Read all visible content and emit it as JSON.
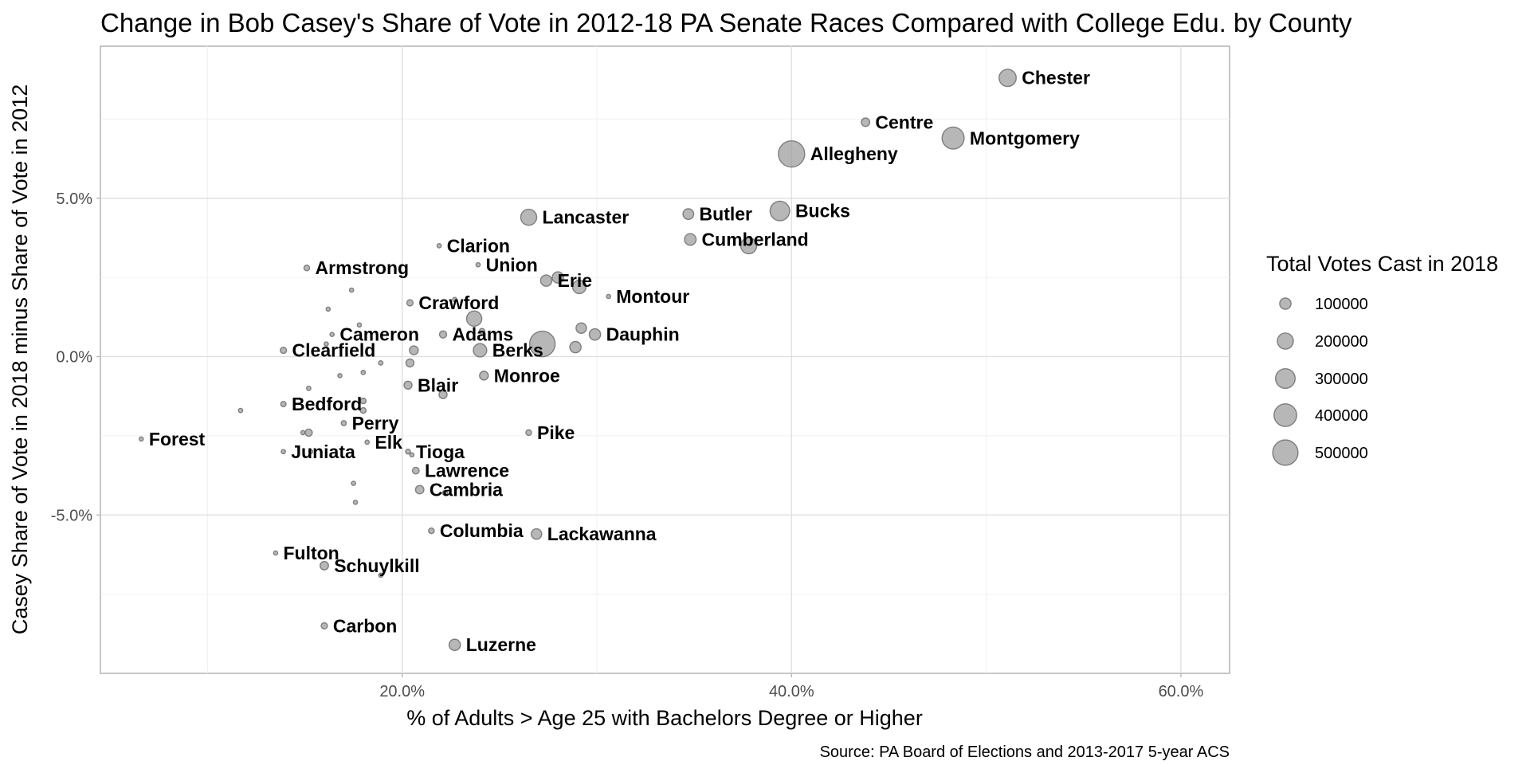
{
  "chart_data": {
    "type": "scatter",
    "title": "Change in Bob Casey's Share of Vote in 2012-18 PA Senate Races Compared with College Edu. by County",
    "xlabel": "% of Adults > Age 25 with Bachelors Degree or Higher",
    "ylabel": "Casey Share of Vote in 2018 minus Share of Vote in 2012",
    "caption": "Source: PA Board of Elections and 2013-2017 5-year ACS",
    "xlim": [
      4.5,
      62.5
    ],
    "ylim": [
      -10,
      9.8
    ],
    "x_ticks": [
      20,
      40,
      60
    ],
    "x_tick_labels": [
      "20.0%",
      "40.0%",
      "60.0%"
    ],
    "y_ticks": [
      -5,
      0,
      5
    ],
    "y_tick_labels": [
      "-5.0%",
      "0.0%",
      "5.0%"
    ],
    "grid": true,
    "point_color": "#999999",
    "point_opacity": 0.7,
    "legend": {
      "title": "Total Votes Cast in 2018",
      "placement": "right",
      "values": [
        100000,
        200000,
        300000,
        400000,
        500000
      ],
      "labels": [
        "100000",
        "200000",
        "300000",
        "400000",
        "500000"
      ]
    },
    "points": [
      {
        "label": "Chester",
        "x": 51.1,
        "y": 8.8,
        "votes": 230000
      },
      {
        "label": "Centre",
        "x": 43.8,
        "y": 7.4,
        "votes": 55000
      },
      {
        "label": "Montgomery",
        "x": 48.3,
        "y": 6.9,
        "votes": 380000
      },
      {
        "label": "Allegheny",
        "x": 40.0,
        "y": 6.4,
        "votes": 540000
      },
      {
        "label": "Lancaster",
        "x": 26.5,
        "y": 4.4,
        "votes": 200000
      },
      {
        "label": "Butler",
        "x": 34.7,
        "y": 4.5,
        "votes": 90000
      },
      {
        "label": "Bucks",
        "x": 39.4,
        "y": 4.6,
        "votes": 300000
      },
      {
        "label": "Cumberland",
        "x": 34.8,
        "y": 3.7,
        "votes": 105000
      },
      {
        "label": "",
        "x": 37.8,
        "y": 3.5,
        "votes": 200000
      },
      {
        "label": "Clarion",
        "x": 21.9,
        "y": 3.5,
        "votes": 14000
      },
      {
        "label": "Union",
        "x": 23.9,
        "y": 2.9,
        "votes": 14000
      },
      {
        "label": "Armstrong",
        "x": 15.1,
        "y": 2.8,
        "votes": 25000
      },
      {
        "label": "Erie",
        "x": 27.4,
        "y": 2.4,
        "votes": 100000
      },
      {
        "label": "",
        "x": 28.0,
        "y": 2.5,
        "votes": 100000
      },
      {
        "label": "",
        "x": 29.1,
        "y": 2.2,
        "votes": 140000
      },
      {
        "label": "Montour",
        "x": 30.6,
        "y": 1.9,
        "votes": 6000
      },
      {
        "label": "",
        "x": 17.4,
        "y": 2.1,
        "votes": 14000
      },
      {
        "label": "",
        "x": 22.7,
        "y": 1.8,
        "votes": 15000
      },
      {
        "label": "Crawford",
        "x": 20.4,
        "y": 1.7,
        "votes": 30000
      },
      {
        "label": "",
        "x": 16.2,
        "y": 1.5,
        "votes": 12000
      },
      {
        "label": "",
        "x": 23.7,
        "y": 1.2,
        "votes": 180000
      },
      {
        "label": "",
        "x": 17.8,
        "y": 1.0,
        "votes": 12000
      },
      {
        "label": "Adams",
        "x": 22.1,
        "y": 0.7,
        "votes": 40000
      },
      {
        "label": "",
        "x": 24.1,
        "y": 0.8,
        "votes": 25000
      },
      {
        "label": "Cameron",
        "x": 16.4,
        "y": 0.7,
        "votes": 2500
      },
      {
        "label": "",
        "x": 27.2,
        "y": 0.4,
        "votes": 510000
      },
      {
        "label": "Dauphin",
        "x": 29.9,
        "y": 0.7,
        "votes": 100000
      },
      {
        "label": "",
        "x": 29.2,
        "y": 0.9,
        "votes": 85000
      },
      {
        "label": "",
        "x": 28.9,
        "y": 0.3,
        "votes": 100000
      },
      {
        "label": "",
        "x": 16.1,
        "y": 0.4,
        "votes": 12000
      },
      {
        "label": "Clearfield",
        "x": 13.9,
        "y": 0.2,
        "votes": 30000
      },
      {
        "label": "",
        "x": 20.6,
        "y": 0.2,
        "votes": 60000
      },
      {
        "label": "Berks",
        "x": 24.0,
        "y": 0.2,
        "votes": 140000
      },
      {
        "label": "",
        "x": 20.4,
        "y": -0.2,
        "votes": 50000
      },
      {
        "label": "",
        "x": 18.9,
        "y": -0.2,
        "votes": 15000
      },
      {
        "label": "",
        "x": 18.0,
        "y": -0.5,
        "votes": 14000
      },
      {
        "label": "",
        "x": 16.8,
        "y": -0.6,
        "votes": 4000
      },
      {
        "label": "Monroe",
        "x": 24.2,
        "y": -0.6,
        "votes": 60000
      },
      {
        "label": "",
        "x": 15.2,
        "y": -1.0,
        "votes": 15000
      },
      {
        "label": "Blair",
        "x": 20.3,
        "y": -0.9,
        "votes": 50000
      },
      {
        "label": "",
        "x": 22.1,
        "y": -1.2,
        "votes": 50000
      },
      {
        "label": "Bedford",
        "x": 13.9,
        "y": -1.5,
        "votes": 22000
      },
      {
        "label": "",
        "x": 11.7,
        "y": -1.7,
        "votes": 14000
      },
      {
        "label": "",
        "x": 18.0,
        "y": -1.4,
        "votes": 25000
      },
      {
        "label": "",
        "x": 18.0,
        "y": -1.7,
        "votes": 25000
      },
      {
        "label": "Perry",
        "x": 17.0,
        "y": -2.1,
        "votes": 20000
      },
      {
        "label": "Pike",
        "x": 26.5,
        "y": -2.4,
        "votes": 25000
      },
      {
        "label": "Forest",
        "x": 6.6,
        "y": -2.6,
        "votes": 2500
      },
      {
        "label": "",
        "x": 15.2,
        "y": -2.4,
        "votes": 40000
      },
      {
        "label": "",
        "x": 14.9,
        "y": -2.4,
        "votes": 10000
      },
      {
        "label": "Elk",
        "x": 18.2,
        "y": -2.7,
        "votes": 14000
      },
      {
        "label": "Juniata",
        "x": 13.9,
        "y": -3.0,
        "votes": 10000
      },
      {
        "label": "",
        "x": 15.3,
        "y": -3.0,
        "votes": 12000
      },
      {
        "label": "Tioga",
        "x": 20.3,
        "y": -3.0,
        "votes": 18000
      },
      {
        "label": "",
        "x": 20.5,
        "y": -3.1,
        "votes": 12000
      },
      {
        "label": "Lawrence",
        "x": 20.7,
        "y": -3.6,
        "votes": 35000
      },
      {
        "label": "",
        "x": 17.5,
        "y": -4.0,
        "votes": 12000
      },
      {
        "label": "Cambria",
        "x": 20.9,
        "y": -4.2,
        "votes": 55000
      },
      {
        "label": "",
        "x": 22.2,
        "y": -4.3,
        "votes": 20000
      },
      {
        "label": "",
        "x": 17.6,
        "y": -4.6,
        "votes": 12000
      },
      {
        "label": "Columbia",
        "x": 21.5,
        "y": -5.5,
        "votes": 25000
      },
      {
        "label": "Lackawanna",
        "x": 26.9,
        "y": -5.6,
        "votes": 85000
      },
      {
        "label": "Fulton",
        "x": 13.5,
        "y": -6.2,
        "votes": 6000
      },
      {
        "label": "Schuylkill",
        "x": 16.0,
        "y": -6.6,
        "votes": 55000
      },
      {
        "label": "",
        "x": 18.9,
        "y": -6.9,
        "votes": 8000
      },
      {
        "label": "Carbon",
        "x": 16.0,
        "y": -8.5,
        "votes": 30000
      },
      {
        "label": "Luzerne",
        "x": 22.7,
        "y": -9.1,
        "votes": 100000
      }
    ]
  }
}
